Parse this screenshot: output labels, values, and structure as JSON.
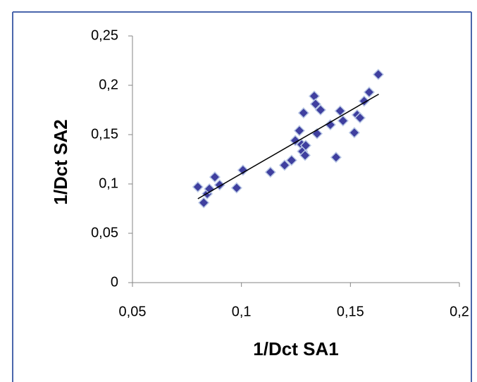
{
  "chart_data": {
    "type": "scatter",
    "x_label": "1/Dct SA1",
    "y_label": "1/Dct SA2",
    "xlim": [
      0.05,
      0.2
    ],
    "xticks": [
      {
        "value": 0.05,
        "label": "0,05"
      },
      {
        "value": 0.1,
        "label": "0,1"
      },
      {
        "value": 0.15,
        "label": "0,15"
      },
      {
        "value": 0.2,
        "label": "0,2"
      }
    ],
    "ylim": [
      0,
      0.25
    ],
    "yticks": [
      0,
      {
        "value": 0.05,
        "label": "0,05"
      },
      {
        "value": 0.1,
        "label": "0,1"
      },
      {
        "value": 0.15,
        "label": "0,15"
      },
      {
        "value": 0.2,
        "label": "0,2"
      },
      {
        "value": 0.25,
        "label": "0,25"
      }
    ],
    "series": [
      {
        "color": "#3f3f9f",
        "x": [
          0.08,
          0.0827,
          0.0843,
          0.0853,
          0.0878,
          0.09,
          0.0978,
          0.1007,
          0.1133,
          0.1198,
          0.123,
          0.1247,
          0.1266,
          0.1276,
          0.128,
          0.1285,
          0.1292,
          0.1295,
          0.1334,
          0.134,
          0.1347,
          0.1363,
          0.1408,
          0.1434,
          0.1453,
          0.1466,
          0.1518,
          0.1531,
          0.1544,
          0.1563,
          0.1586,
          0.1628
        ],
        "values": [
          0.097,
          0.081,
          0.09,
          0.095,
          0.107,
          0.099,
          0.096,
          0.114,
          0.112,
          0.119,
          0.124,
          0.144,
          0.154,
          0.14,
          0.133,
          0.172,
          0.129,
          0.139,
          0.189,
          0.181,
          0.151,
          0.175,
          0.16,
          0.127,
          0.174,
          0.164,
          0.152,
          0.17,
          0.167,
          0.184,
          0.193,
          0.211
        ]
      }
    ],
    "trendline": {
      "color": "#000000",
      "x": [
        0.08,
        0.163
      ],
      "values": [
        0.085,
        0.191
      ]
    },
    "grid": false
  }
}
